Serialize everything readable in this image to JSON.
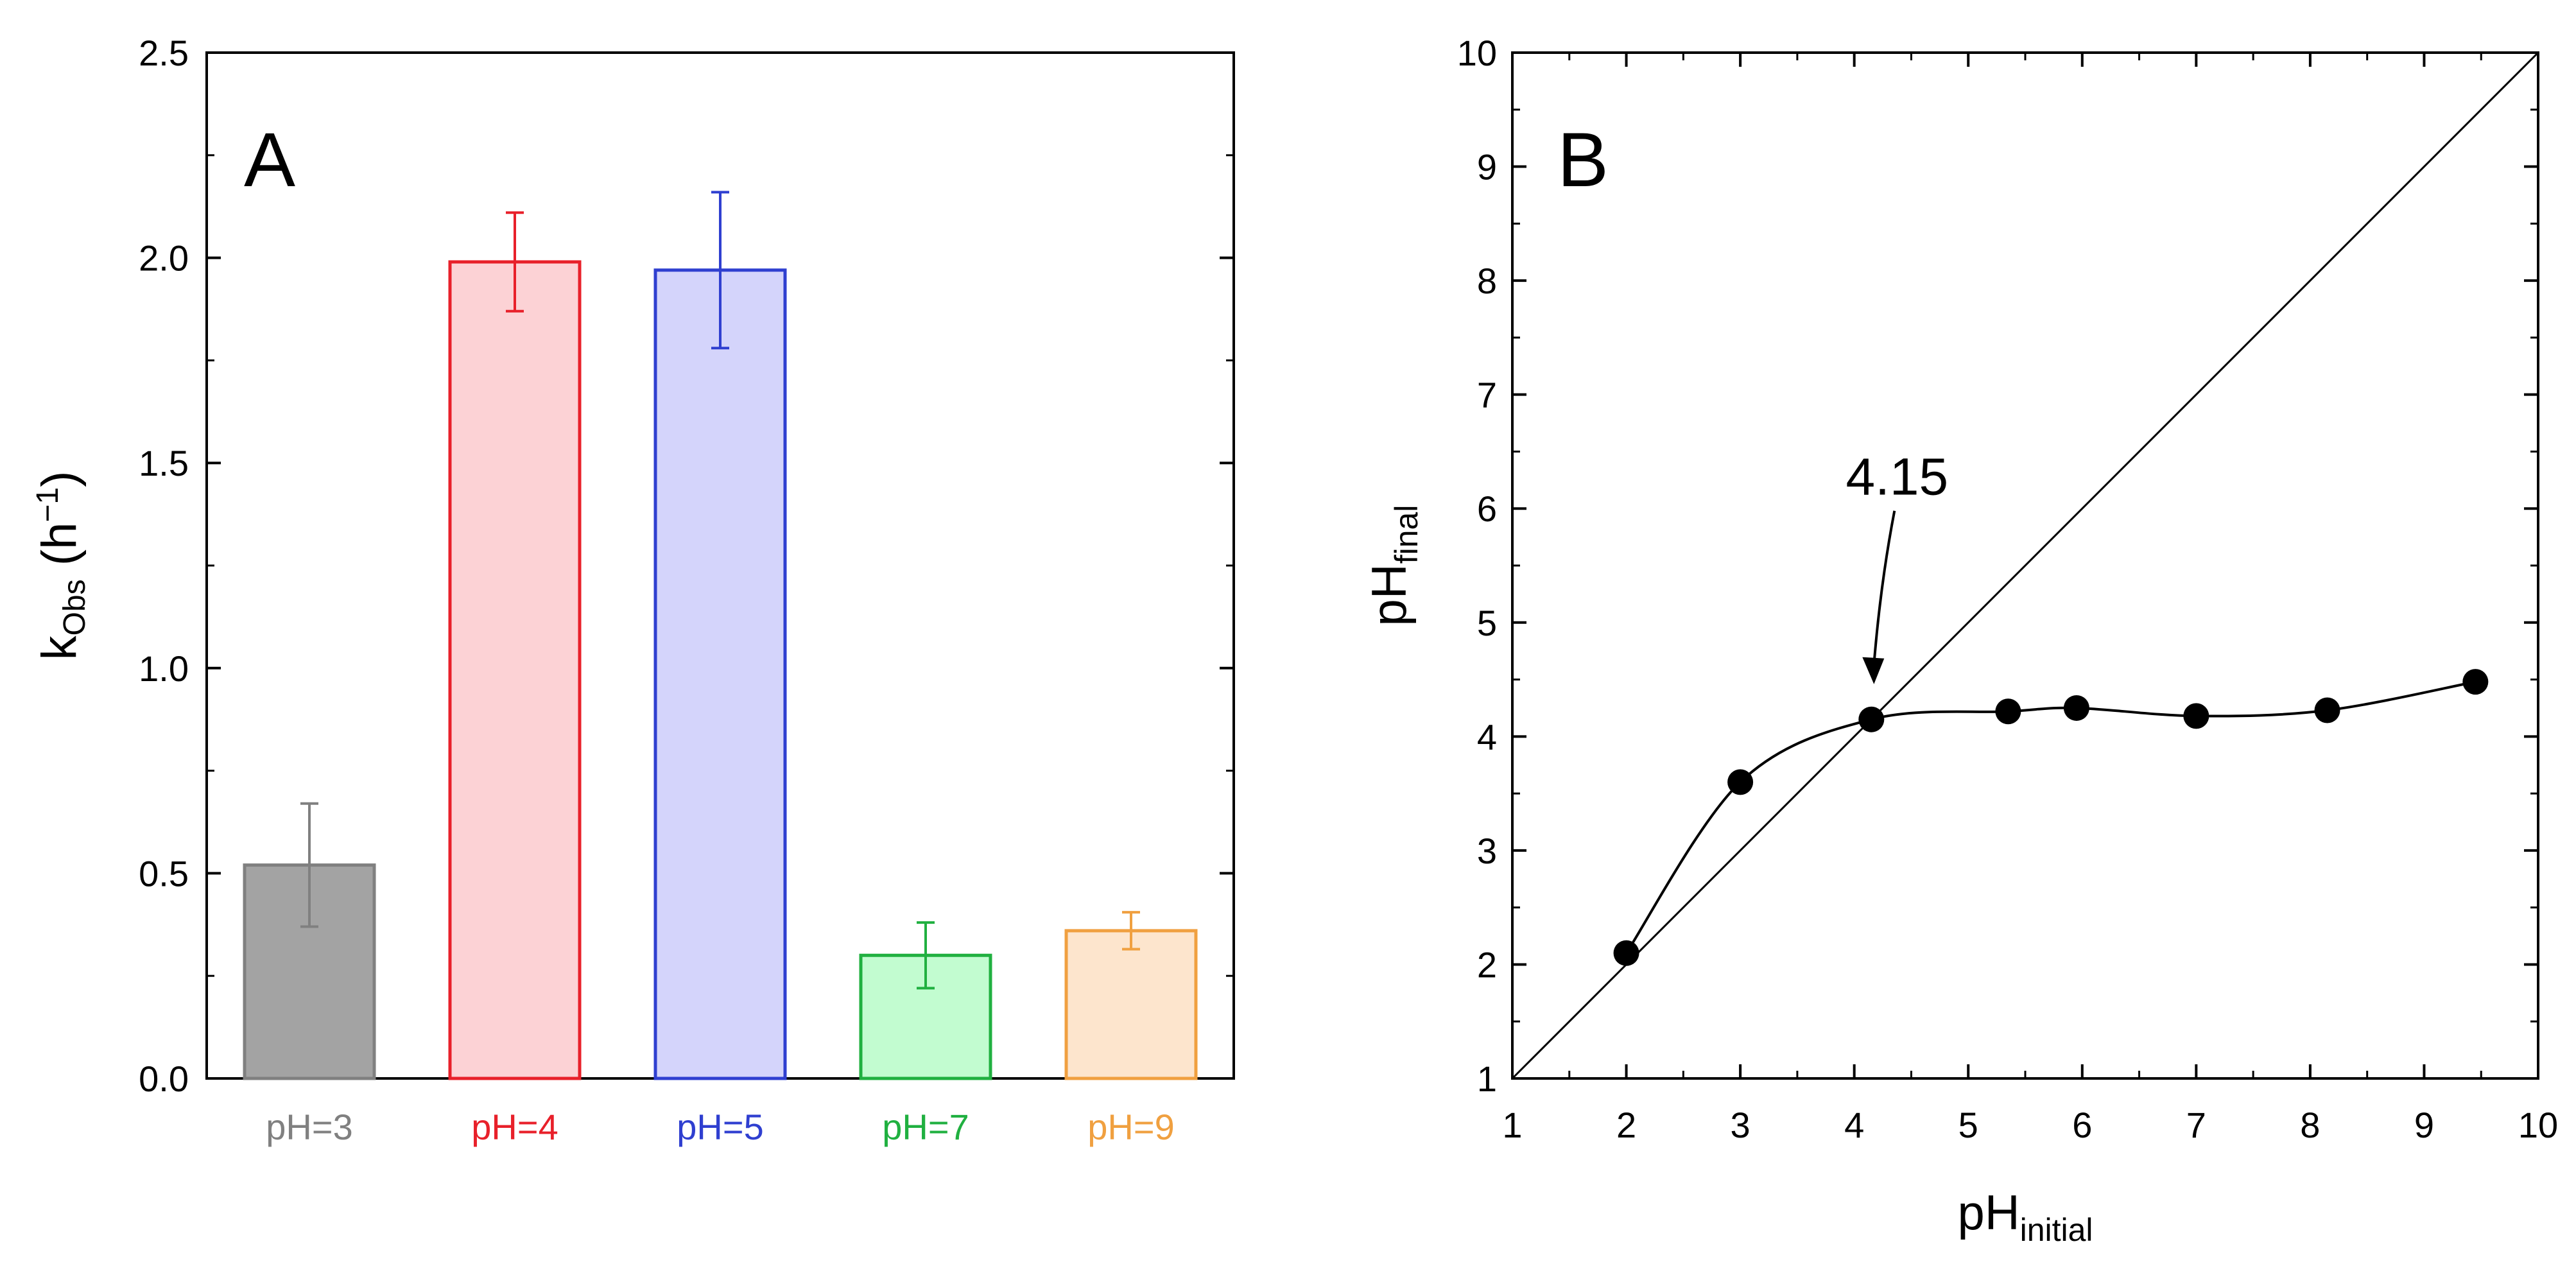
{
  "chart_data": [
    {
      "panel": "A",
      "type": "bar",
      "panel_label": "A",
      "categories": [
        "pH=3",
        "pH=4",
        "pH=5",
        "pH=7",
        "pH=9"
      ],
      "values": [
        0.52,
        1.99,
        1.97,
        0.3,
        0.36
      ],
      "errors": [
        0.15,
        0.12,
        0.19,
        0.08,
        0.045
      ],
      "colors": [
        "#808080",
        "#e8202a",
        "#2f3fd0",
        "#20b040",
        "#f0a040"
      ],
      "fill_colors": [
        "#a3a3a3",
        "#fcd2d5",
        "#d4d4fb",
        "#c2fcd0",
        "#fde5cd"
      ],
      "ylabel_main": "k",
      "ylabel_sub": "Obs",
      "ylabel_unit_open": " (h",
      "ylabel_sup": "−1",
      "ylabel_unit_close": ")",
      "ylim": [
        0,
        2.5
      ],
      "yticks": [
        "0.0",
        "0.5",
        "1.0",
        "1.5",
        "2.0",
        "2.5"
      ],
      "grid": false
    },
    {
      "panel": "B",
      "type": "scatter",
      "panel_label": "B",
      "x": [
        2.0,
        3.0,
        4.15,
        5.35,
        5.95,
        7.0,
        8.15,
        9.45
      ],
      "y": [
        2.1,
        3.6,
        4.15,
        4.22,
        4.25,
        4.18,
        4.23,
        4.48
      ],
      "xlabel_main": "pH",
      "xlabel_sub": "initial",
      "ylabel_main": "pH",
      "ylabel_sub": "final",
      "xlim": [
        1,
        10
      ],
      "ylim": [
        1,
        10
      ],
      "xticks": [
        "1",
        "2",
        "3",
        "4",
        "5",
        "6",
        "7",
        "8",
        "9",
        "10"
      ],
      "yticks": [
        "1",
        "2",
        "3",
        "4",
        "5",
        "6",
        "7",
        "8",
        "9",
        "10"
      ],
      "reference_line": "y = x",
      "annotation": {
        "text": "4.15",
        "x": 4.15,
        "y": 4.15
      },
      "grid": false
    }
  ]
}
